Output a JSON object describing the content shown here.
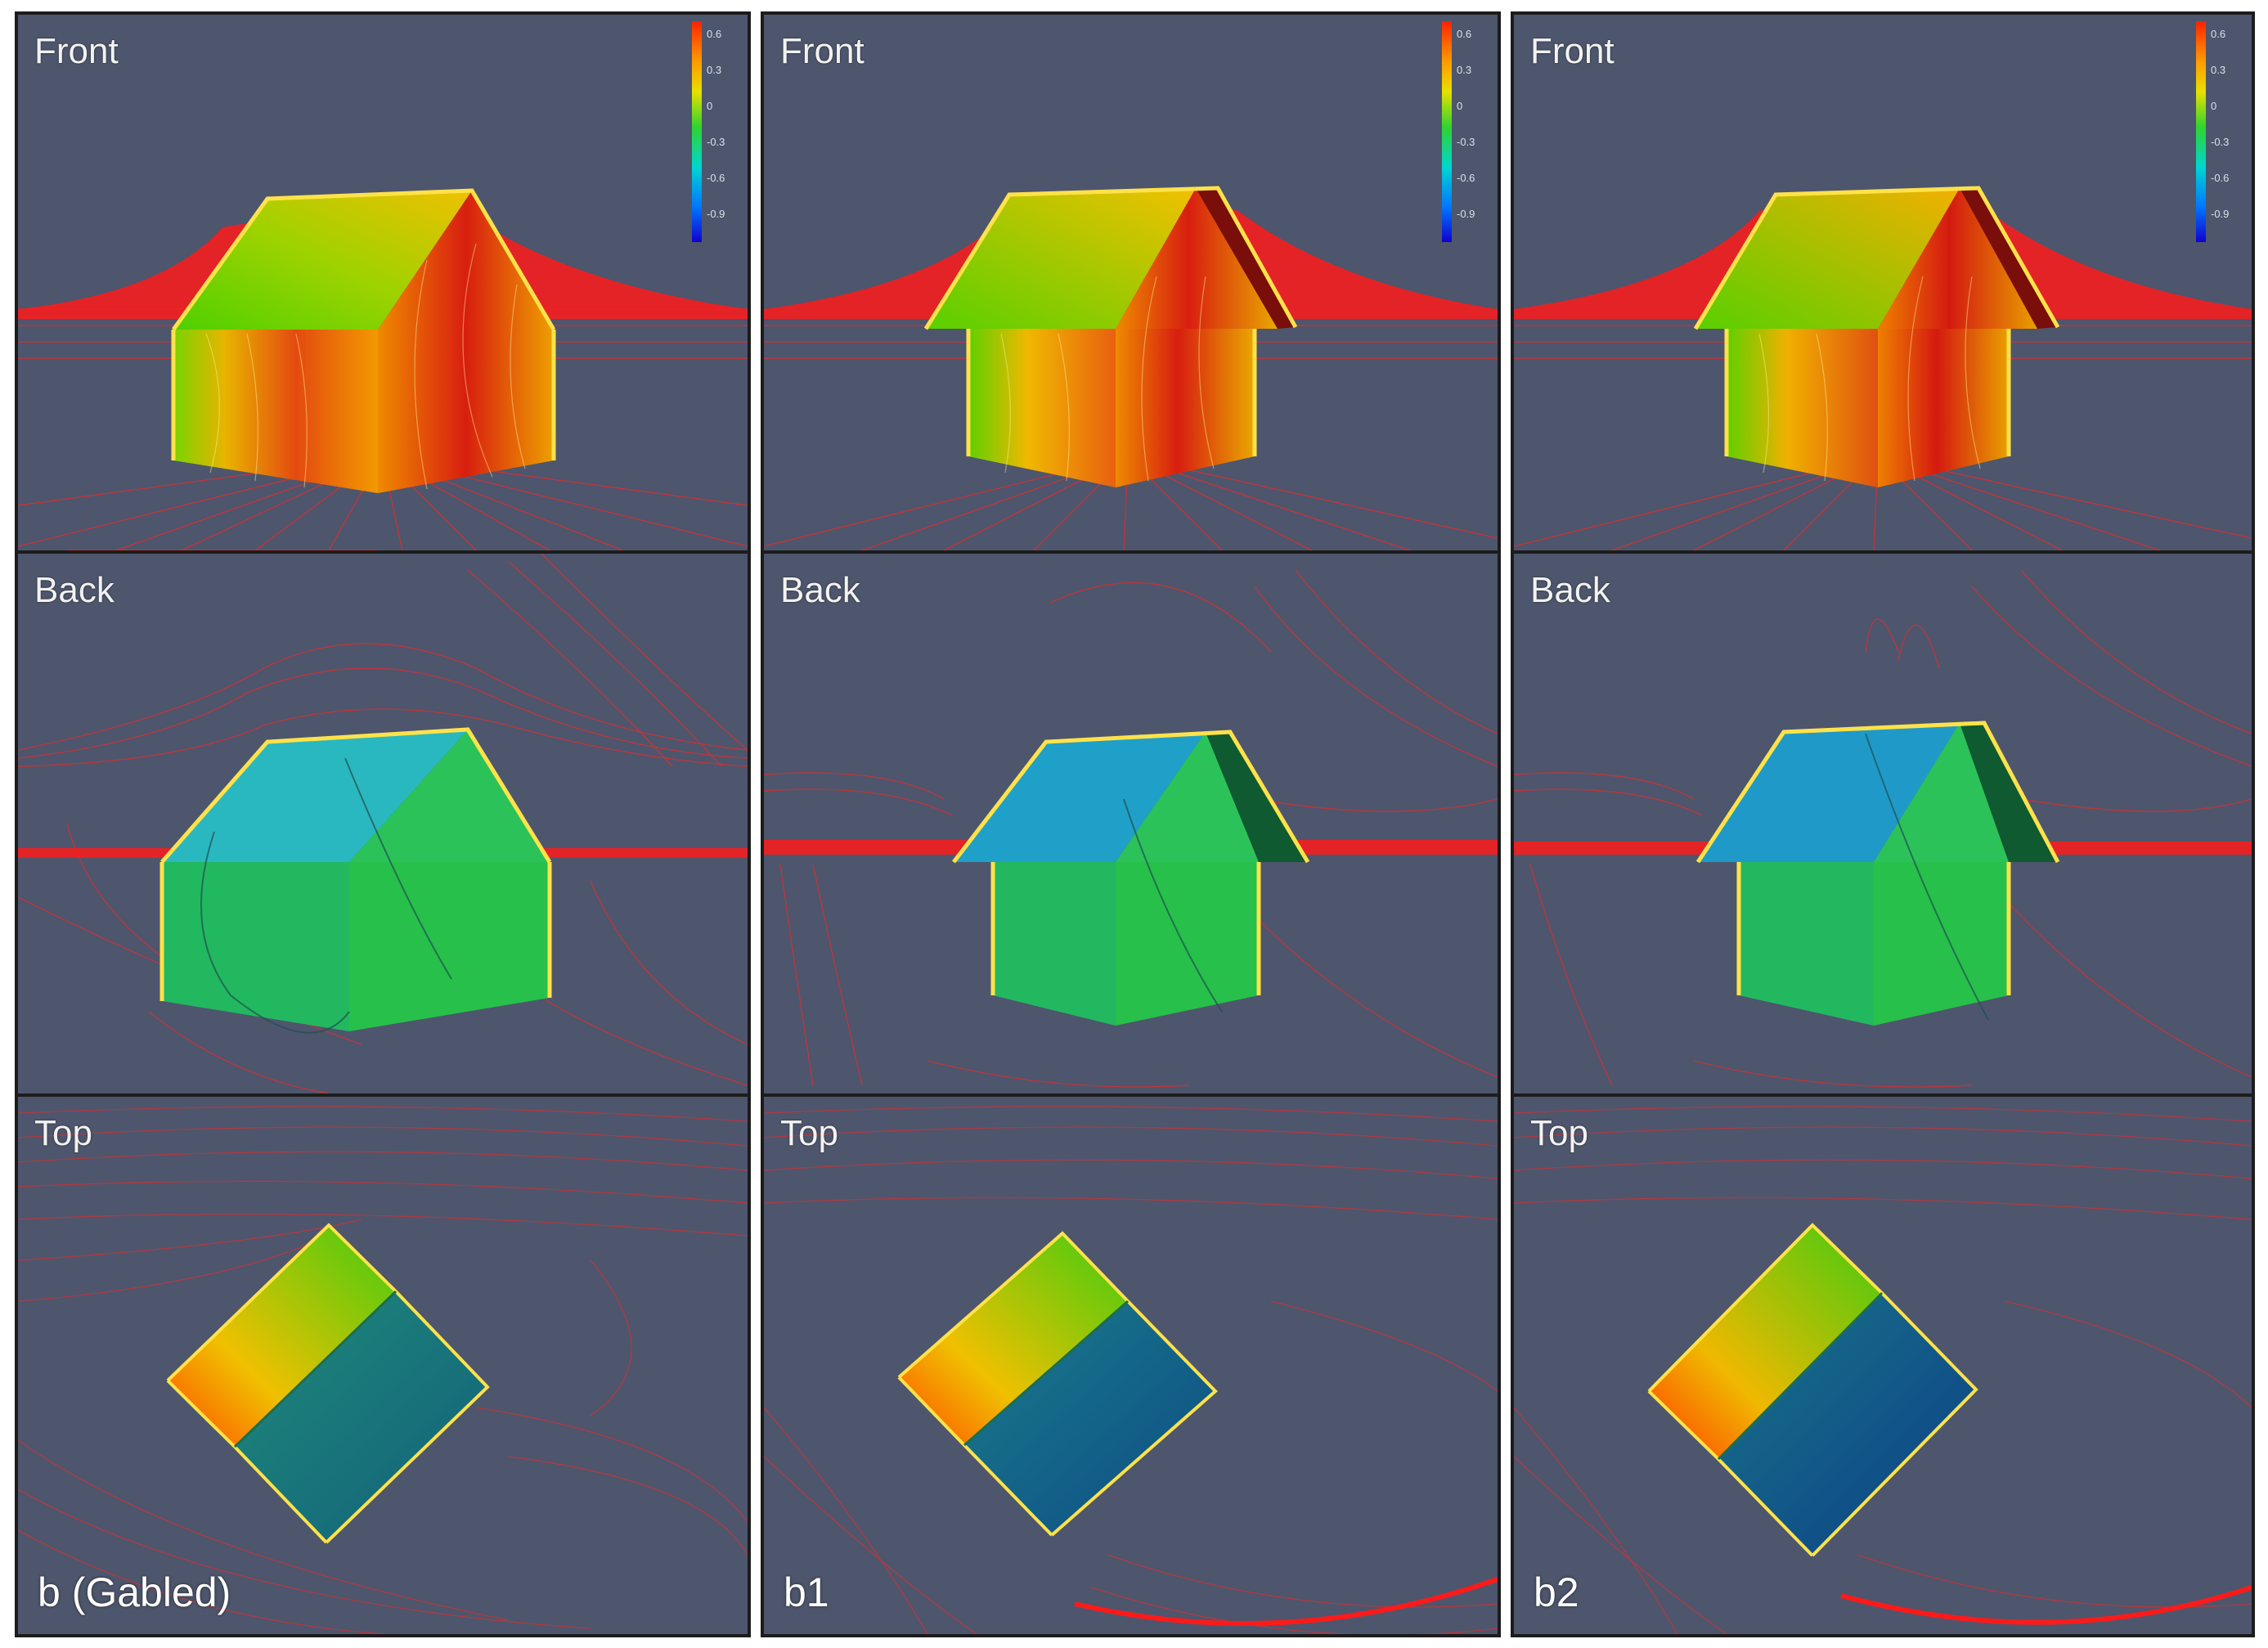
{
  "panels": [
    {
      "caption": "b (Gabled)",
      "views": {
        "front": "Front",
        "back": "Back",
        "top": "Top"
      },
      "colorbar_ticks": [
        "0.6",
        "0.3",
        "0",
        "-0.3",
        "-0.6",
        "-0.9"
      ]
    },
    {
      "caption": "b1",
      "views": {
        "front": "Front",
        "back": "Back",
        "top": "Top"
      },
      "colorbar_ticks": [
        "0.6",
        "0.3",
        "0",
        "-0.3",
        "-0.6",
        "-0.9"
      ]
    },
    {
      "caption": "b2",
      "views": {
        "front": "Front",
        "back": "Back",
        "top": "Top"
      },
      "colorbar_ticks": [
        "0.6",
        "0.3",
        "0",
        "-0.3",
        "-0.6",
        "-0.9"
      ]
    }
  ],
  "colors": {
    "background": "#4d566d",
    "streamline": "#e82a2a",
    "windward": "#e23a10",
    "mid": "#f0c000",
    "neutral": "#2fc24a",
    "leeward": "#1aa8c0",
    "suction": "#0a5a9a"
  }
}
